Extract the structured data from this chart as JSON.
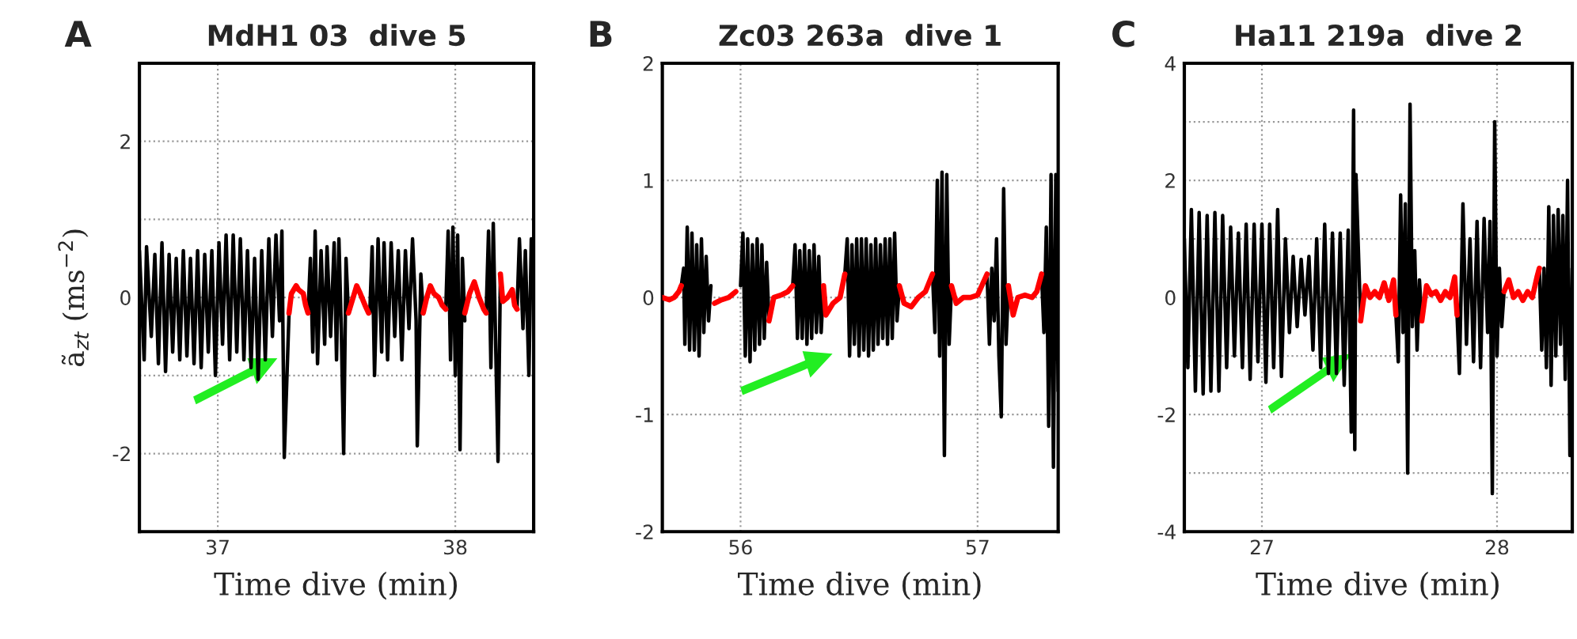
{
  "chart_data": [
    {
      "type": "line",
      "title": "MdH1 03  dive 5",
      "xlabel": "Time dive (min)",
      "ylabel": "ã$_{zt}$ (ms$^{−2}$)",
      "annotations": [
        "A"
      ],
      "xlim": [
        36.67,
        38.33
      ],
      "ylim": [
        -3,
        3
      ],
      "xticks": [
        37,
        38
      ],
      "yticks": [
        {
          "value": -3,
          "label": null
        },
        -2,
        {
          "value": -1,
          "label": null
        },
        0,
        {
          "value": 1,
          "label": null
        },
        2,
        {
          "value": 3,
          "label": null
        }
      ],
      "grid": true,
      "line_style": "solid",
      "marker": "none",
      "series": [
        {
          "type": "line",
          "color": "#000000",
          "x": [
            36.67,
            36.69,
            36.7,
            36.72,
            36.735,
            36.75,
            36.765,
            36.78,
            36.795,
            36.81,
            36.825,
            36.84,
            36.855,
            36.87,
            36.885,
            36.9,
            36.915,
            36.93,
            36.945,
            36.96,
            36.975,
            36.99,
            37.005,
            37.02,
            37.035,
            37.05,
            37.065,
            37.08,
            37.095,
            37.11,
            37.125,
            37.14,
            37.155,
            37.17,
            37.185,
            37.2,
            37.215,
            37.23,
            37.245,
            37.26,
            37.27,
            37.28,
            37.3,
            37.31,
            37.38,
            37.39,
            37.4,
            37.41,
            37.42,
            37.435,
            37.45,
            37.46,
            37.475,
            37.49,
            37.5,
            37.51,
            37.52,
            37.53,
            37.54,
            37.55,
            37.551,
            37.64,
            37.65,
            37.66,
            37.675,
            37.69,
            37.7,
            37.715,
            37.73,
            37.745,
            37.76,
            37.775,
            37.79,
            37.805,
            37.82,
            37.835,
            37.84,
            37.855,
            37.865,
            37.866,
            37.96,
            37.97,
            37.98,
            37.99,
            38.0,
            38.01,
            38.02,
            38.03,
            38.04,
            38.041,
            38.13,
            38.14,
            38.15,
            38.16,
            38.17,
            38.18,
            38.19,
            38.191,
            38.26,
            38.27,
            38.285,
            38.295,
            38.31,
            38.32,
            38.33
          ],
          "values": [
            0.6,
            -0.8,
            0.65,
            -0.5,
            0.55,
            -0.85,
            0.7,
            -0.95,
            0.55,
            -0.7,
            0.5,
            -0.8,
            0.6,
            -0.75,
            0.5,
            -0.85,
            0.6,
            -0.9,
            0.55,
            -0.7,
            0.6,
            -1.0,
            0.7,
            -0.6,
            0.8,
            -0.8,
            0.8,
            -0.7,
            0.75,
            -0.8,
            0.6,
            -0.9,
            0.5,
            -1.05,
            0.6,
            -0.8,
            0.75,
            -0.5,
            0.8,
            -0.3,
            0.85,
            -2.05,
            -0.2,
            null,
            -0.2,
            0.5,
            -0.7,
            0.85,
            -0.85,
            0.6,
            -0.6,
            0.65,
            -0.5,
            0.7,
            -0.8,
            0.75,
            -0.4,
            -2.0,
            0.5,
            -0.2,
            null,
            -0.2,
            0.65,
            -1.0,
            0.75,
            -0.7,
            0.7,
            -0.8,
            0.7,
            -0.5,
            0.6,
            -0.8,
            0.6,
            -0.4,
            0.75,
            -0.3,
            -1.9,
            0.3,
            -0.2,
            null,
            -0.15,
            0.85,
            -0.8,
            0.9,
            -1.0,
            0.8,
            -1.95,
            0.5,
            -0.3,
            null,
            -0.2,
            0.85,
            -0.9,
            0.95,
            -0.6,
            -2.1,
            0.3,
            null,
            -0.15,
            0.75,
            -0.4,
            0.6,
            -1.0,
            0.75,
            0.5
          ]
        },
        {
          "type": "line",
          "color": "#ff0000",
          "x": [
            37.3,
            37.31,
            37.33,
            37.34,
            37.36,
            37.37,
            37.38,
            37.381,
            37.55,
            37.57,
            37.585,
            37.6,
            37.62,
            37.635,
            37.636,
            37.865,
            37.88,
            37.895,
            37.91,
            37.93,
            37.945,
            37.96,
            37.961,
            38.04,
            38.06,
            38.08,
            38.1,
            38.12,
            38.13,
            38.131,
            38.19,
            38.2,
            38.22,
            38.24,
            38.25,
            38.26
          ],
          "values": [
            -0.2,
            0.05,
            0.15,
            0.1,
            0.05,
            -0.1,
            -0.2,
            null,
            -0.2,
            0.0,
            0.15,
            0.05,
            -0.1,
            -0.2,
            null,
            -0.2,
            0.0,
            0.15,
            0.05,
            0.0,
            -0.1,
            -0.15,
            null,
            -0.2,
            0.05,
            0.2,
            0.0,
            -0.15,
            -0.2,
            null,
            0.3,
            -0.05,
            0.0,
            0.1,
            -0.1,
            -0.15
          ]
        }
      ]
    },
    {
      "type": "line",
      "title": "Zc03 263a  dive 1",
      "xlabel": "Time dive (min)",
      "annotations": [
        "B"
      ],
      "xlim": [
        55.67,
        57.34
      ],
      "ylim": [
        -2,
        2
      ],
      "xticks": [
        56,
        57
      ],
      "yticks": [
        -2,
        -1,
        0,
        1,
        2
      ],
      "grid": true,
      "line_style": "solid",
      "marker": "none",
      "series": [
        {
          "type": "line",
          "color": "#000000",
          "x": [
            55.75,
            55.76,
            55.765,
            55.775,
            55.785,
            55.795,
            55.805,
            55.815,
            55.825,
            55.835,
            55.845,
            55.855,
            55.865,
            55.875,
            55.876,
            56.0,
            56.01,
            56.02,
            56.03,
            56.04,
            56.05,
            56.06,
            56.07,
            56.08,
            56.09,
            56.1,
            56.11,
            56.12,
            56.121,
            56.22,
            56.23,
            56.24,
            56.25,
            56.26,
            56.27,
            56.28,
            56.29,
            56.3,
            56.31,
            56.32,
            56.33,
            56.34,
            56.35,
            56.351,
            56.44,
            56.45,
            56.46,
            56.47,
            56.48,
            56.49,
            56.5,
            56.51,
            56.52,
            56.53,
            56.54,
            56.55,
            56.56,
            56.57,
            56.58,
            56.59,
            56.6,
            56.61,
            56.62,
            56.63,
            56.64,
            56.65,
            56.66,
            56.67,
            56.671,
            56.81,
            56.82,
            56.83,
            56.84,
            56.85,
            56.86,
            56.87,
            56.88,
            56.89,
            56.891,
            57.04,
            57.05,
            57.06,
            57.07,
            57.08,
            57.09,
            57.1,
            57.11,
            57.12,
            57.13,
            57.131,
            57.27,
            57.28,
            57.29,
            57.3,
            57.31,
            57.32,
            57.33,
            57.34
          ],
          "values": [
            0.1,
            0.25,
            -0.4,
            0.6,
            -0.45,
            0.55,
            -0.45,
            0.45,
            -0.5,
            0.5,
            -0.3,
            0.35,
            -0.2,
            0.1,
            null,
            0.1,
            0.55,
            -0.5,
            0.5,
            -0.55,
            0.45,
            -0.45,
            0.5,
            -0.4,
            0.45,
            -0.35,
            0.3,
            -0.2,
            null,
            0.1,
            0.45,
            -0.35,
            0.4,
            -0.35,
            0.45,
            -0.4,
            0.4,
            -0.35,
            0.45,
            -0.3,
            0.35,
            -0.3,
            0.1,
            null,
            0.2,
            0.5,
            -0.5,
            0.45,
            -0.4,
            0.5,
            -0.5,
            0.5,
            -0.45,
            0.5,
            -0.5,
            0.45,
            -0.45,
            0.5,
            -0.4,
            0.45,
            -0.35,
            0.5,
            -0.4,
            0.5,
            -0.35,
            0.55,
            -0.2,
            0.1,
            null,
            0.2,
            -0.3,
            1.0,
            -0.5,
            1.07,
            -1.35,
            1.05,
            -0.4,
            0.1,
            null,
            0.2,
            -0.4,
            0.25,
            -0.2,
            0.5,
            -0.5,
            -1.02,
            0.93,
            -0.4,
            0.1,
            null,
            0.2,
            -0.3,
            0.6,
            -1.1,
            1.05,
            -1.45,
            1.05,
            -0.8
          ]
        },
        {
          "type": "line",
          "color": "#ff0000",
          "x": [
            55.67,
            55.7,
            55.72,
            55.74,
            55.75,
            55.751,
            55.89,
            55.92,
            55.95,
            55.98,
            56.001,
            56.12,
            56.14,
            56.17,
            56.2,
            56.22,
            56.221,
            56.35,
            56.36,
            56.39,
            56.42,
            56.44,
            56.441,
            56.67,
            56.69,
            56.72,
            56.75,
            56.78,
            56.81,
            56.811,
            56.89,
            56.91,
            56.94,
            56.97,
            57.0,
            57.04,
            57.041,
            57.13,
            57.15,
            57.17,
            57.2,
            57.23,
            57.25,
            57.27
          ],
          "values": [
            0.0,
            -0.02,
            0.0,
            0.05,
            0.1,
            null,
            -0.05,
            -0.02,
            0.0,
            0.05,
            null,
            -0.2,
            0.0,
            0.02,
            0.05,
            0.1,
            null,
            0.1,
            -0.15,
            -0.05,
            0.0,
            0.2,
            null,
            0.1,
            -0.05,
            -0.08,
            0.0,
            0.05,
            0.2,
            null,
            0.1,
            -0.05,
            0.0,
            0.0,
            0.02,
            0.2,
            null,
            0.1,
            -0.15,
            0.0,
            0.02,
            0.0,
            0.05,
            0.2
          ]
        }
      ]
    },
    {
      "type": "line",
      "title": "Ha11 219a  dive 2",
      "xlabel": "Time dive (min)",
      "annotations": [
        "C"
      ],
      "xlim": [
        26.67,
        28.32
      ],
      "ylim": [
        -4,
        4
      ],
      "xticks": [
        27,
        28
      ],
      "yticks": [
        -4,
        {
          "value": -3,
          "label": null
        },
        -2,
        {
          "value": -1,
          "label": null
        },
        0,
        {
          "value": 1,
          "label": null
        },
        2,
        {
          "value": 3,
          "label": null
        },
        4
      ],
      "grid": true,
      "line_style": "solid",
      "marker": "none",
      "series": [
        {
          "type": "line",
          "color": "#000000",
          "x": [
            26.67,
            26.685,
            26.7,
            26.717,
            26.733,
            26.75,
            26.767,
            26.783,
            26.8,
            26.817,
            26.833,
            26.85,
            26.867,
            26.883,
            26.9,
            26.917,
            26.933,
            26.95,
            26.967,
            26.983,
            27.0,
            27.017,
            27.033,
            27.05,
            27.067,
            27.083,
            27.1,
            27.117,
            27.133,
            27.15,
            27.167,
            27.183,
            27.2,
            27.217,
            27.233,
            27.25,
            27.267,
            27.283,
            27.3,
            27.317,
            27.333,
            27.35,
            27.367,
            27.38,
            27.39,
            27.395,
            27.4,
            27.42,
            27.421,
            27.57,
            27.58,
            27.59,
            27.6,
            27.61,
            27.62,
            27.63,
            27.64,
            27.65,
            27.66,
            27.67,
            27.68,
            27.681,
            27.83,
            27.84,
            27.855,
            27.87,
            27.885,
            27.9,
            27.915,
            27.93,
            27.945,
            27.96,
            27.97,
            27.98,
            27.99,
            28.0,
            28.01,
            28.02,
            28.03,
            28.031,
            28.18,
            28.19,
            28.2,
            28.21,
            28.22,
            28.23,
            28.24,
            28.25,
            28.26,
            28.27,
            28.28,
            28.29,
            28.3,
            28.31,
            28.32
          ],
          "values": [
            1.0,
            -1.2,
            1.5,
            -1.6,
            1.45,
            -1.65,
            1.4,
            -1.6,
            1.45,
            -1.6,
            1.4,
            -1.2,
            1.2,
            -1.0,
            1.1,
            -1.2,
            1.25,
            -1.4,
            1.25,
            -1.1,
            1.25,
            -1.45,
            1.25,
            -1.2,
            1.5,
            -1.35,
            1.0,
            -0.6,
            0.7,
            -0.5,
            0.65,
            -0.3,
            0.7,
            -0.9,
            1.0,
            -1.2,
            1.25,
            -1.3,
            1.1,
            -1.3,
            1.1,
            -1.5,
            1.15,
            -2.3,
            3.2,
            -2.6,
            2.1,
            -0.4,
            null,
            -0.3,
            -1.1,
            1.75,
            -0.6,
            1.6,
            -3.0,
            3.3,
            -0.5,
            0.8,
            -0.9,
            0.3,
            -0.4,
            null,
            -0.3,
            -1.3,
            1.6,
            -0.8,
            1.0,
            -1.1,
            1.3,
            -1.2,
            1.35,
            -0.6,
            1.3,
            -3.35,
            3.0,
            -1.0,
            0.5,
            -0.5,
            0.1,
            null,
            0.5,
            -0.9,
            0.5,
            -1.2,
            1.55,
            -1.5,
            1.4,
            -1.0,
            1.5,
            -0.8,
            1.4,
            -1.4,
            2.0,
            -2.7,
            0.5
          ]
        },
        {
          "type": "line",
          "color": "#ff0000",
          "x": [
            27.42,
            27.44,
            27.46,
            27.48,
            27.5,
            27.52,
            27.54,
            27.56,
            27.57,
            27.571,
            27.68,
            27.7,
            27.72,
            27.74,
            27.76,
            27.78,
            27.8,
            27.82,
            27.83,
            27.831,
            28.03,
            28.05,
            28.07,
            28.09,
            28.11,
            28.13,
            28.15,
            28.17,
            28.18
          ],
          "values": [
            -0.4,
            0.2,
            0.0,
            0.1,
            0.0,
            0.25,
            -0.05,
            0.3,
            -0.3,
            null,
            -0.4,
            0.2,
            0.05,
            0.1,
            -0.05,
            0.1,
            0.0,
            0.35,
            -0.3,
            null,
            0.1,
            0.3,
            0.0,
            0.1,
            -0.05,
            0.1,
            0.0,
            0.35,
            0.5
          ]
        }
      ]
    }
  ]
}
